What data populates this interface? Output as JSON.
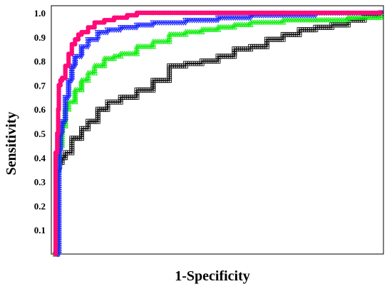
{
  "chart_data": {
    "type": "line",
    "title": "",
    "xlabel": "1-Specificity",
    "ylabel": "Sensitivity",
    "xlim": [
      0,
      1
    ],
    "ylim": [
      0,
      1
    ],
    "x_tick_labels": [],
    "y_ticks": [
      {
        "value": 0.1,
        "label": "0.1"
      },
      {
        "value": 0.2,
        "label": "0.2"
      },
      {
        "value": 0.3,
        "label": "0.3"
      },
      {
        "value": 0.4,
        "label": "0.4"
      },
      {
        "value": 0.5,
        "label": "0.5"
      },
      {
        "value": 0.6,
        "label": "0.6"
      },
      {
        "value": 0.7,
        "label": "0.7"
      },
      {
        "value": 0.8,
        "label": "0.8"
      },
      {
        "value": 0.9,
        "label": "0.9"
      },
      {
        "value": 1.0,
        "label": "1.0"
      }
    ],
    "grid": false,
    "legend": "none",
    "series": [
      {
        "color": "#ff0a78",
        "marker": "circle",
        "x": [
          0,
          0.0,
          0.005,
          0.008,
          0.01,
          0.015,
          0.02,
          0.03,
          0.04,
          0.05,
          0.06,
          0.07,
          0.08,
          0.1,
          0.12,
          0.15,
          0.18,
          0.22,
          0.25,
          0.3,
          0.4,
          0.5,
          0.6,
          0.7,
          0.8,
          0.9,
          1.0
        ],
        "y": [
          0,
          0.42,
          0.5,
          0.6,
          0.7,
          0.72,
          0.73,
          0.78,
          0.83,
          0.87,
          0.89,
          0.91,
          0.92,
          0.94,
          0.96,
          0.97,
          0.98,
          0.99,
          1.0,
          1.0,
          1.0,
          1.0,
          1.0,
          1.0,
          1.0,
          1.0,
          1.0
        ]
      },
      {
        "color": "#1e28ff",
        "marker": "triangle-down",
        "x": [
          0.005,
          0.01,
          0.012,
          0.015,
          0.02,
          0.03,
          0.04,
          0.05,
          0.06,
          0.08,
          0.1,
          0.13,
          0.16,
          0.2,
          0.25,
          0.3,
          0.4,
          0.5,
          0.6,
          0.7,
          0.8,
          0.9,
          1.0
        ],
        "y": [
          0.0,
          0.35,
          0.43,
          0.5,
          0.55,
          0.65,
          0.72,
          0.78,
          0.82,
          0.86,
          0.89,
          0.92,
          0.93,
          0.94,
          0.95,
          0.96,
          0.97,
          0.98,
          0.99,
          0.99,
          1.0,
          1.0,
          1.0
        ]
      },
      {
        "color": "#10ee10",
        "marker": "triangle-up",
        "x": [
          0.0,
          0.005,
          0.01,
          0.02,
          0.03,
          0.04,
          0.06,
          0.08,
          0.1,
          0.12,
          0.15,
          0.18,
          0.2,
          0.25,
          0.3,
          0.35,
          0.4,
          0.45,
          0.5,
          0.55,
          0.6,
          0.7,
          0.8,
          0.9,
          1.0
        ],
        "y": [
          0.0,
          0.35,
          0.45,
          0.53,
          0.6,
          0.63,
          0.68,
          0.72,
          0.75,
          0.78,
          0.81,
          0.82,
          0.83,
          0.86,
          0.88,
          0.91,
          0.92,
          0.93,
          0.94,
          0.95,
          0.96,
          0.97,
          0.97,
          0.98,
          1.0
        ]
      },
      {
        "color": "#111111",
        "marker": "square",
        "x": [
          0.0,
          0.005,
          0.01,
          0.02,
          0.03,
          0.05,
          0.08,
          0.1,
          0.13,
          0.16,
          0.2,
          0.25,
          0.3,
          0.35,
          0.4,
          0.45,
          0.5,
          0.55,
          0.6,
          0.65,
          0.7,
          0.75,
          0.8,
          0.85,
          0.9,
          0.95,
          1.0
        ],
        "y": [
          0.0,
          0.36,
          0.38,
          0.4,
          0.42,
          0.48,
          0.52,
          0.55,
          0.6,
          0.63,
          0.65,
          0.68,
          0.72,
          0.78,
          0.79,
          0.8,
          0.82,
          0.85,
          0.86,
          0.89,
          0.91,
          0.93,
          0.94,
          0.95,
          0.97,
          0.99,
          1.0
        ]
      }
    ]
  }
}
